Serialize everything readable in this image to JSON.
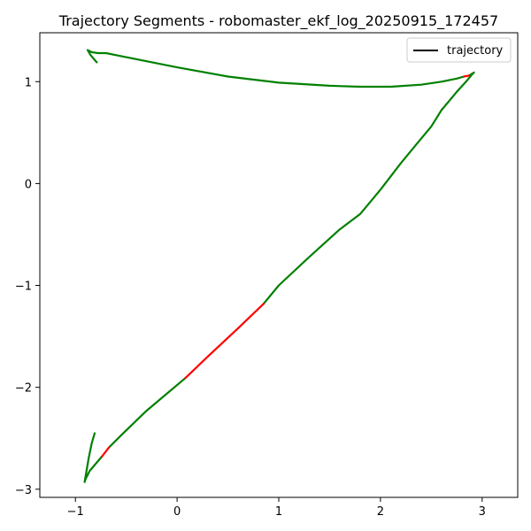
{
  "chart_data": {
    "type": "line",
    "title": "Trajectory Segments - robomaster_ekf_log_20250915_172457",
    "xlabel": "",
    "ylabel": "",
    "xlim": [
      -1.35,
      3.35
    ],
    "ylim": [
      -3.08,
      1.48
    ],
    "xticks": [
      -1,
      0,
      1,
      2,
      3
    ],
    "xtick_labels": [
      "−1",
      "0",
      "1",
      "2",
      "3"
    ],
    "yticks": [
      -3,
      -2,
      -1,
      0,
      1
    ],
    "ytick_labels": [
      "−3",
      "−2",
      "−1",
      "0",
      "1"
    ],
    "grid": false,
    "legend": {
      "location": "top-right",
      "entries": [
        {
          "label": "trajectory",
          "color": "#000000"
        }
      ]
    },
    "series": [
      {
        "name": "green-segments",
        "color": "#008000",
        "segments": [
          [
            [
              -0.79,
              1.19
            ],
            [
              -0.85,
              1.26
            ],
            [
              -0.88,
              1.31
            ],
            [
              -0.84,
              1.29
            ],
            [
              -0.78,
              1.28
            ],
            [
              -0.7,
              1.28
            ],
            [
              -0.6,
              1.26
            ],
            [
              -0.3,
              1.2
            ],
            [
              0.0,
              1.14
            ],
            [
              0.5,
              1.05
            ],
            [
              1.0,
              0.99
            ],
            [
              1.5,
              0.96
            ],
            [
              1.8,
              0.95
            ],
            [
              2.1,
              0.95
            ],
            [
              2.4,
              0.97
            ],
            [
              2.6,
              1.0
            ],
            [
              2.75,
              1.03
            ],
            [
              2.82,
              1.05
            ]
          ],
          [
            [
              2.87,
              1.06
            ],
            [
              2.92,
              1.09
            ],
            [
              2.9,
              1.07
            ],
            [
              2.85,
              1.01
            ],
            [
              2.75,
              0.9
            ],
            [
              2.6,
              0.72
            ],
            [
              2.5,
              0.56
            ],
            [
              2.35,
              0.38
            ],
            [
              2.2,
              0.2
            ],
            [
              2.0,
              -0.06
            ],
            [
              1.8,
              -0.3
            ],
            [
              1.6,
              -0.45
            ],
            [
              1.3,
              -0.72
            ],
            [
              1.0,
              -1.0
            ],
            [
              0.85,
              -1.18
            ]
          ],
          [
            [
              0.08,
              -1.91
            ],
            [
              -0.3,
              -2.23
            ],
            [
              -0.55,
              -2.47
            ],
            [
              -0.67,
              -2.59
            ]
          ],
          [
            [
              -0.74,
              -2.68
            ],
            [
              -0.8,
              -2.75
            ],
            [
              -0.86,
              -2.82
            ],
            [
              -0.9,
              -2.9
            ],
            [
              -0.91,
              -2.93
            ],
            [
              -0.87,
              -2.7
            ],
            [
              -0.84,
              -2.55
            ],
            [
              -0.81,
              -2.45
            ]
          ]
        ]
      },
      {
        "name": "red-segments",
        "color": "#ff0000",
        "segments": [
          [
            [
              2.82,
              1.05
            ],
            [
              2.87,
              1.06
            ]
          ],
          [
            [
              0.85,
              -1.18
            ],
            [
              0.6,
              -1.42
            ],
            [
              0.3,
              -1.7
            ],
            [
              0.08,
              -1.91
            ]
          ],
          [
            [
              -0.67,
              -2.59
            ],
            [
              -0.74,
              -2.68
            ]
          ]
        ]
      }
    ]
  }
}
